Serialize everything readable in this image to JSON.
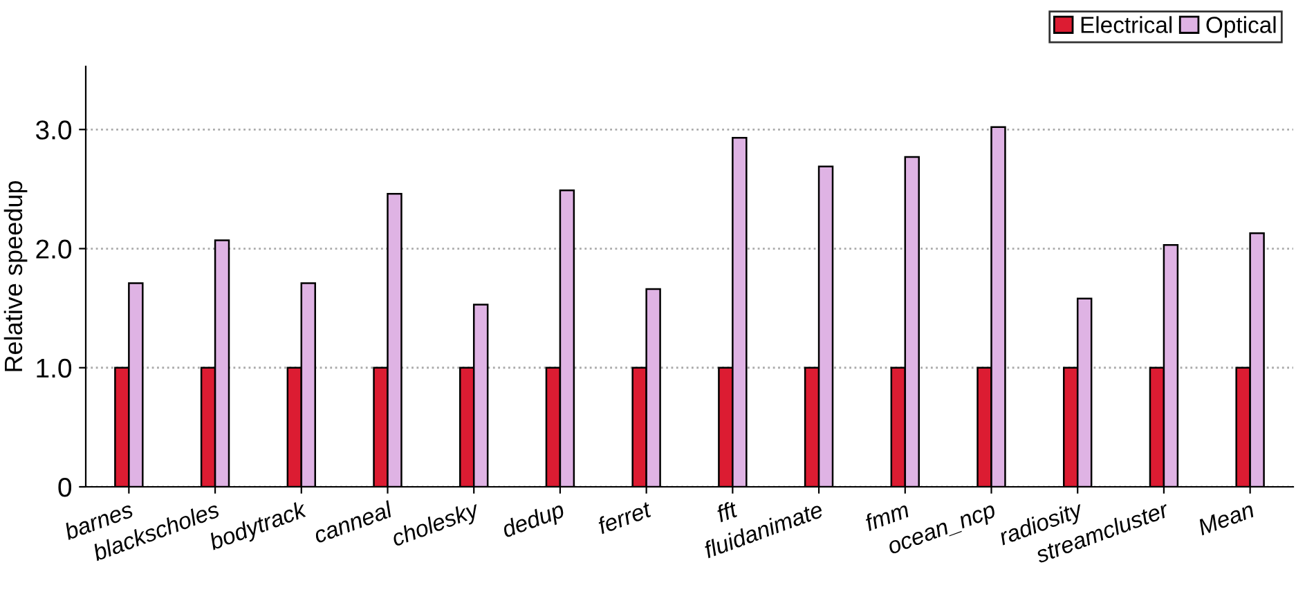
{
  "chart_data": {
    "type": "bar",
    "ylabel": "Relative speedup",
    "categories": [
      "barnes",
      "blackscholes",
      "bodytrack",
      "canneal",
      "cholesky",
      "dedup",
      "ferret",
      "fft",
      "fluidanimate",
      "fmm",
      "ocean_ncp",
      "radiosity",
      "streamcluster",
      "Mean"
    ],
    "series": [
      {
        "name": "Electrical",
        "color": "#dc1c32",
        "values": [
          1,
          1,
          1,
          1,
          1,
          1,
          1,
          1,
          1,
          1,
          1,
          1,
          1,
          1
        ]
      },
      {
        "name": "Optical",
        "color": "#dfb3e4",
        "values": [
          1.71,
          2.07,
          1.71,
          2.46,
          1.53,
          2.49,
          1.66,
          2.93,
          2.69,
          2.77,
          3.02,
          1.58,
          2.03,
          2.13
        ]
      }
    ],
    "ylim": [
      0,
      3.53
    ],
    "yticks": [
      0,
      {
        "value": 1,
        "label": "1.0"
      },
      {
        "value": 2,
        "label": "2.0"
      },
      {
        "value": 3,
        "label": "3.0"
      }
    ],
    "grid": "y",
    "legend": "top right"
  }
}
